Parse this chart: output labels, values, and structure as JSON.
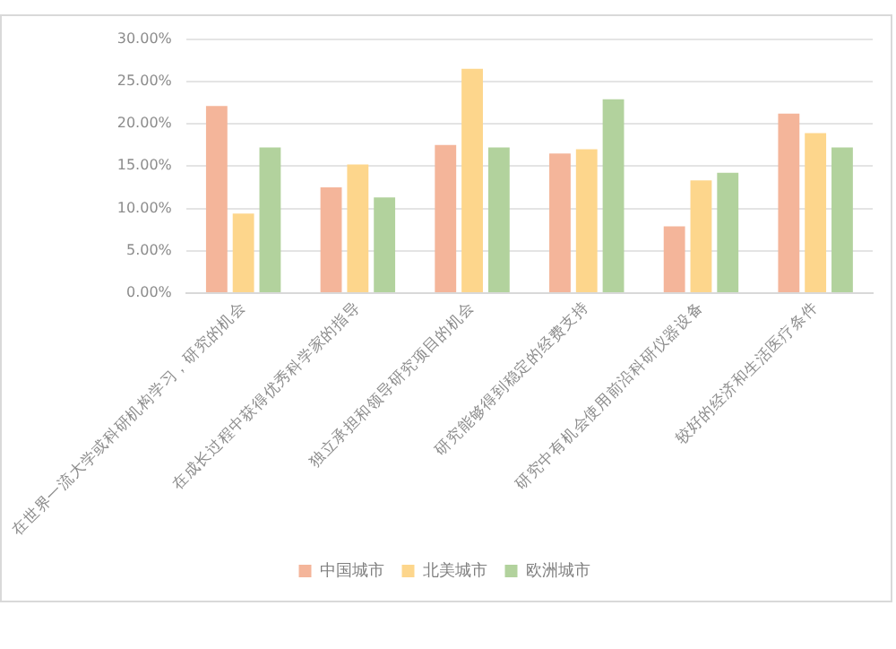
{
  "chart_data": {
    "type": "bar",
    "categories": [
      "在世界一流大学或科研机构学习，研究的机会",
      "在成长过程中获得优秀科学家的指导",
      "独立承担和领导研究项目的机会",
      "研究能够得到稳定的经费支持",
      "研究中有机会使用前沿科研仪器设备",
      "较好的经济和生活医疗条件"
    ],
    "series": [
      {
        "name": "中国城市",
        "color": "#f4b59a",
        "values": [
          22.1,
          12.5,
          17.5,
          16.5,
          7.9,
          21.2
        ]
      },
      {
        "name": "北美城市",
        "color": "#fdd68c",
        "values": [
          9.4,
          15.2,
          26.5,
          17.0,
          13.3,
          18.9
        ]
      },
      {
        "name": "欧洲城市",
        "color": "#b2d29d",
        "values": [
          17.2,
          11.3,
          17.2,
          22.9,
          14.2,
          17.2
        ]
      }
    ],
    "ylim": [
      0,
      30
    ],
    "yticks": [
      {
        "value": 0,
        "label": "0.00%"
      },
      {
        "value": 5,
        "label": "5.00%"
      },
      {
        "value": 10,
        "label": "10.00%"
      },
      {
        "value": 15,
        "label": "15.00%"
      },
      {
        "value": 20,
        "label": "20.00%"
      },
      {
        "value": 25,
        "label": "25.00%"
      },
      {
        "value": 30,
        "label": "30.00%"
      }
    ],
    "grid": "y",
    "legend": "bottom"
  }
}
